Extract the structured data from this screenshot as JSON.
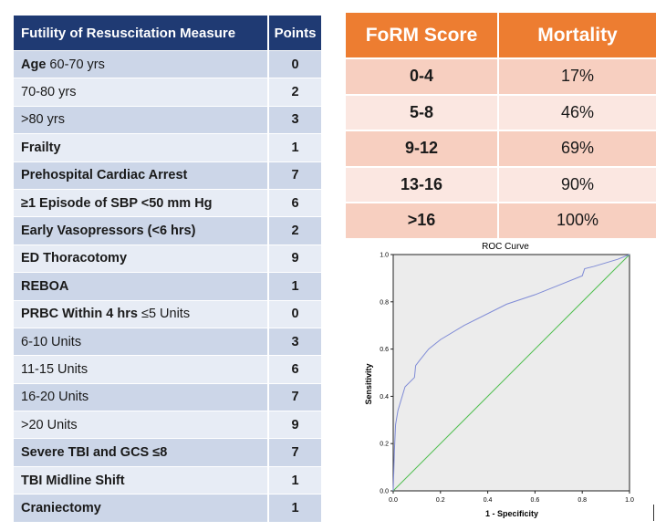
{
  "measure_table": {
    "headers": {
      "measure": "Futility of Resuscitation Measure",
      "points": "Points"
    },
    "rows": [
      {
        "label_bold": "Age",
        "label": " 60-70 yrs",
        "points": "0"
      },
      {
        "label_bold": "",
        "label": "70-80 yrs",
        "points": "2"
      },
      {
        "label_bold": "",
        "label": ">80 yrs",
        "points": "3"
      },
      {
        "label_bold": "Frailty",
        "label": "",
        "points": "1"
      },
      {
        "label_bold": "Prehospital Cardiac Arrest",
        "label": "",
        "points": "7"
      },
      {
        "label_bold": "≥1 Episode of SBP <50 mm Hg",
        "label": "",
        "points": "6"
      },
      {
        "label_bold": "Early Vasopressors (<6 hrs)",
        "label": "",
        "points": "2"
      },
      {
        "label_bold": "ED Thoracotomy",
        "label": "",
        "points": "9"
      },
      {
        "label_bold": "REBOA",
        "label": "",
        "points": "1"
      },
      {
        "label_bold": "PRBC Within 4 hrs",
        "label": " ≤5 Units",
        "points": "0"
      },
      {
        "label_bold": "",
        "label": "6-10 Units",
        "points": "3"
      },
      {
        "label_bold": "",
        "label": "11-15 Units",
        "points": "6"
      },
      {
        "label_bold": "",
        "label": "16-20 Units",
        "points": "7"
      },
      {
        "label_bold": "",
        "label": ">20 Units",
        "points": "9"
      },
      {
        "label_bold": "Severe TBI and GCS ≤8",
        "label": "",
        "points": "7"
      },
      {
        "label_bold": "TBI Midline Shift",
        "label": "",
        "points": "1"
      },
      {
        "label_bold": "Craniectomy",
        "label": "",
        "points": "1"
      }
    ]
  },
  "form_table": {
    "headers": {
      "score": "FoRM Score",
      "mortality": "Mortality"
    },
    "rows": [
      {
        "score": "0-4",
        "mortality": "17%"
      },
      {
        "score": "5-8",
        "mortality": "46%"
      },
      {
        "score": "9-12",
        "mortality": "69%"
      },
      {
        "score": "13-16",
        "mortality": "90%"
      },
      {
        "score": ">16",
        "mortality": "100%"
      }
    ]
  },
  "chart_data": {
    "type": "line",
    "title": "ROC Curve",
    "xlabel": "1 - Specificity",
    "ylabel": "Sensitivity",
    "xlim": [
      0,
      1
    ],
    "ylim": [
      0,
      1
    ],
    "ticks": [
      "0.0",
      "0.2",
      "0.4",
      "0.6",
      "0.8",
      "1.0"
    ],
    "grid": false,
    "series": [
      {
        "color": "#7f8bd6",
        "x": [
          0,
          0.005,
          0.01,
          0.02,
          0.05,
          0.09,
          0.095,
          0.11,
          0.15,
          0.2,
          0.3,
          0.48,
          0.6,
          0.7,
          0.8,
          0.81,
          0.85,
          0.95,
          1.0
        ],
        "y": [
          0,
          0.17,
          0.28,
          0.34,
          0.44,
          0.48,
          0.53,
          0.55,
          0.6,
          0.64,
          0.7,
          0.79,
          0.83,
          0.87,
          0.91,
          0.94,
          0.95,
          0.98,
          1.0
        ]
      },
      {
        "color": "#4fbf4f",
        "x": [
          0,
          1
        ],
        "y": [
          0,
          1
        ]
      }
    ],
    "colors": {
      "plot_background": "#ececec"
    }
  }
}
